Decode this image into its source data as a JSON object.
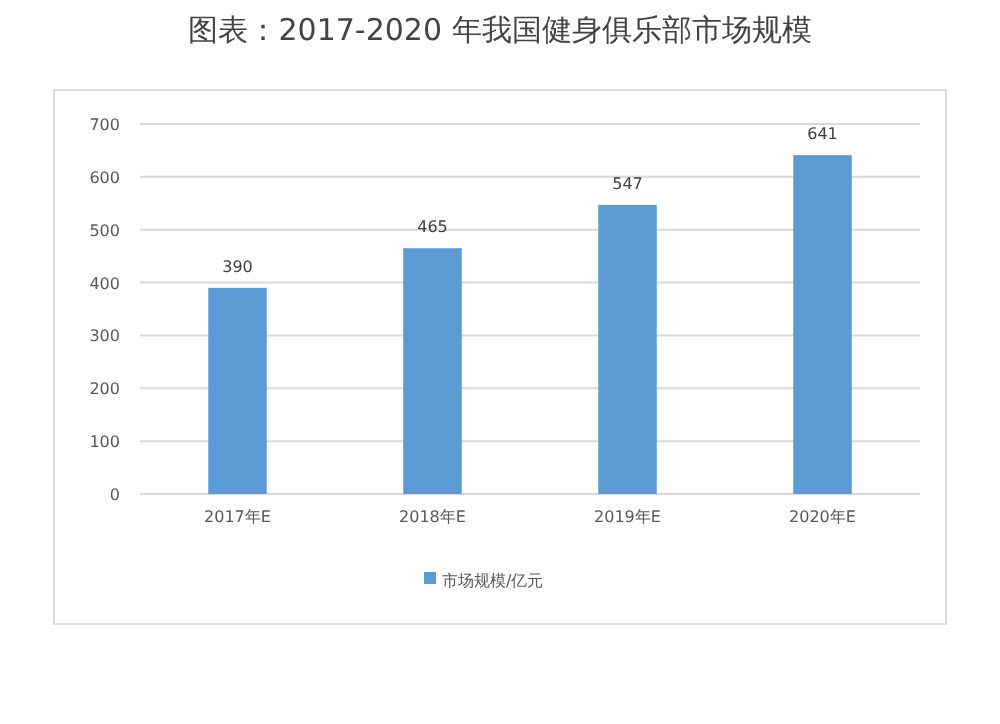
{
  "chart_data": {
    "type": "bar",
    "title": "图表：2017-2020 年我国健身俱乐部市场规模",
    "categories": [
      "2017年E",
      "2018年E",
      "2019年E",
      "2020年E"
    ],
    "series": [
      {
        "name": "市场规模/亿元",
        "color": "#5b9bd5",
        "values": [
          390,
          465,
          547,
          641
        ]
      }
    ],
    "ylim": [
      0,
      700
    ],
    "yticks": [
      0,
      100,
      200,
      300,
      400,
      500,
      600,
      700
    ],
    "grid": "y",
    "legend": "bottom",
    "data_labels": true
  }
}
